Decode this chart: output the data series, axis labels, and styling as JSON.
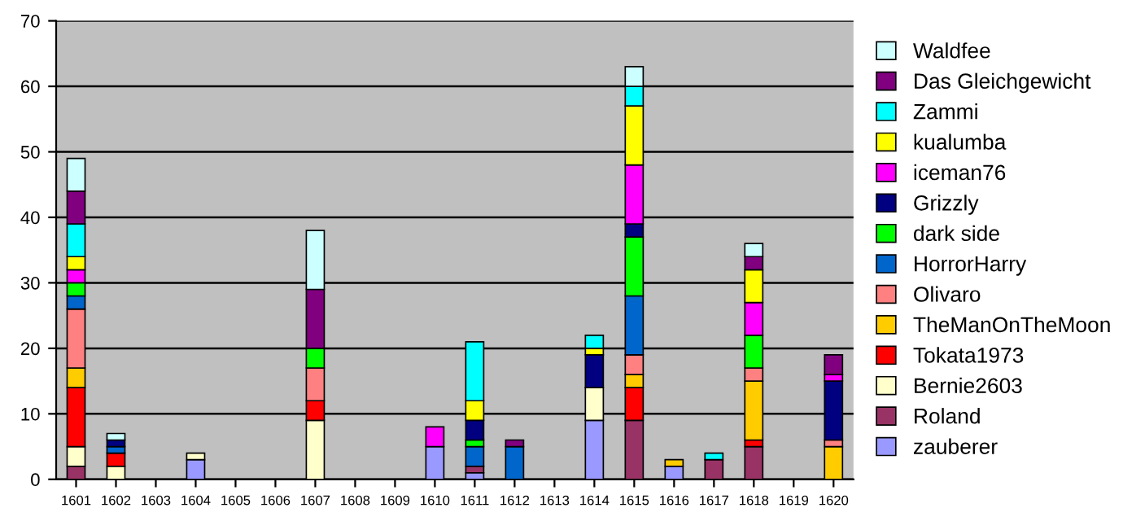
{
  "chart_data": {
    "type": "bar",
    "stacked": true,
    "categories": [
      "1601",
      "1602",
      "1603",
      "1604",
      "1605",
      "1606",
      "1607",
      "1608",
      "1609",
      "1610",
      "1611",
      "1612",
      "1613",
      "1614",
      "1615",
      "1616",
      "1617",
      "1618",
      "1619",
      "1620"
    ],
    "ylim": [
      0,
      70
    ],
    "yticks": [
      0,
      10,
      20,
      30,
      40,
      50,
      60,
      70
    ],
    "grid": "y",
    "legend": "right",
    "series": [
      {
        "name": "zauberer",
        "color": "#9999ff",
        "values": [
          null,
          null,
          null,
          3,
          null,
          null,
          null,
          null,
          null,
          5,
          1,
          null,
          null,
          9,
          null,
          2,
          null,
          null,
          null,
          null
        ]
      },
      {
        "name": "Roland",
        "color": "#993366",
        "values": [
          2,
          null,
          null,
          null,
          null,
          null,
          null,
          null,
          null,
          null,
          1,
          null,
          null,
          null,
          9,
          null,
          3,
          5,
          null,
          null
        ]
      },
      {
        "name": "Bernie2603",
        "color": "#ffffcc",
        "values": [
          3,
          2,
          null,
          1,
          null,
          null,
          9,
          null,
          null,
          null,
          null,
          null,
          null,
          5,
          null,
          null,
          null,
          null,
          null,
          null
        ]
      },
      {
        "name": "Tokata1973",
        "color": "#ff0000",
        "values": [
          9,
          2,
          null,
          null,
          null,
          null,
          3,
          null,
          null,
          null,
          null,
          null,
          null,
          null,
          5,
          null,
          null,
          1,
          null,
          null
        ]
      },
      {
        "name": "TheManOnTheMoon",
        "color": "#ffcc00",
        "values": [
          3,
          null,
          null,
          null,
          null,
          null,
          null,
          null,
          null,
          null,
          null,
          null,
          null,
          null,
          2,
          1,
          null,
          9,
          null,
          5
        ]
      },
      {
        "name": "Olivaro",
        "color": "#ff8080",
        "values": [
          9,
          null,
          null,
          null,
          null,
          null,
          5,
          null,
          null,
          null,
          null,
          null,
          null,
          null,
          3,
          null,
          null,
          2,
          null,
          1
        ]
      },
      {
        "name": "HorrorHarry",
        "color": "#0066cc",
        "values": [
          2,
          1,
          null,
          null,
          null,
          null,
          null,
          null,
          null,
          null,
          3,
          5,
          null,
          null,
          9,
          null,
          null,
          null,
          null,
          null
        ]
      },
      {
        "name": "dark side",
        "color": "#00ff00",
        "values": [
          2,
          null,
          null,
          null,
          null,
          null,
          3,
          null,
          null,
          null,
          1,
          null,
          null,
          null,
          9,
          null,
          null,
          5,
          null,
          null
        ]
      },
      {
        "name": "Grizzly",
        "color": "#000080",
        "values": [
          null,
          1,
          null,
          null,
          null,
          null,
          null,
          null,
          null,
          null,
          3,
          null,
          null,
          5,
          2,
          null,
          null,
          null,
          null,
          9
        ]
      },
      {
        "name": "iceman76",
        "color": "#ff00ff",
        "values": [
          2,
          null,
          null,
          null,
          null,
          null,
          null,
          null,
          null,
          3,
          null,
          null,
          null,
          null,
          9,
          null,
          null,
          5,
          null,
          1
        ]
      },
      {
        "name": "kualumba",
        "color": "#ffff00",
        "values": [
          2,
          null,
          null,
          null,
          null,
          null,
          null,
          null,
          null,
          null,
          3,
          null,
          null,
          1,
          9,
          null,
          null,
          5,
          null,
          null
        ]
      },
      {
        "name": "Zammi",
        "color": "#00ffff",
        "values": [
          5,
          null,
          null,
          null,
          null,
          null,
          null,
          null,
          null,
          null,
          9,
          null,
          null,
          2,
          3,
          null,
          1,
          null,
          null,
          null
        ]
      },
      {
        "name": "Das Gleichgewicht",
        "color": "#800080",
        "values": [
          5,
          null,
          null,
          null,
          null,
          null,
          9,
          null,
          null,
          null,
          null,
          1,
          null,
          null,
          null,
          null,
          null,
          2,
          null,
          3
        ]
      },
      {
        "name": "Waldfee",
        "color": "#ccffff",
        "values": [
          5,
          1,
          null,
          null,
          null,
          null,
          9,
          null,
          null,
          null,
          null,
          null,
          null,
          null,
          3,
          null,
          null,
          2,
          null,
          null
        ]
      }
    ]
  }
}
